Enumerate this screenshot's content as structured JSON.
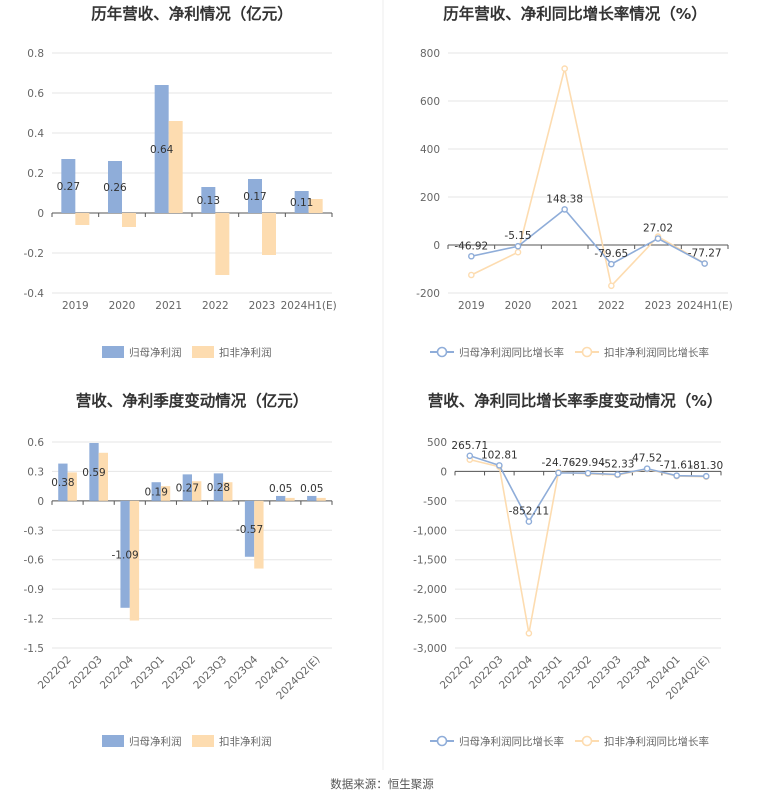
{
  "colors": {
    "blue": "#8fadd9",
    "orange": "#fddcb0",
    "blue_line": "#8fadd9",
    "orange_line": "#fddcb0"
  },
  "source_text": "数据来源：恒生聚源",
  "chart_data": [
    {
      "type": "bar",
      "title": "历年营收、净利情况（亿元）",
      "categories": [
        "2019",
        "2020",
        "2021",
        "2022",
        "2023",
        "2024H1(E)"
      ],
      "ylim": [
        -0.4,
        0.8
      ],
      "yticks": [
        "-0.4",
        "-0.2",
        "0",
        "0.2",
        "0.4",
        "0.6",
        "0.8"
      ],
      "series": [
        {
          "name": "归母净利润",
          "color": "#8fadd9",
          "values": [
            0.27,
            0.26,
            0.64,
            0.13,
            0.17,
            0.11
          ],
          "labels": [
            "0.27",
            "0.26",
            "0.64",
            "0.13",
            "0.17",
            "0.11"
          ]
        },
        {
          "name": "扣非净利润",
          "color": "#fddcb0",
          "values": [
            -0.06,
            -0.07,
            0.46,
            -0.31,
            -0.21,
            0.07
          ]
        }
      ],
      "legend_position": "bottom-center"
    },
    {
      "type": "line",
      "title": "历年营收、净利同比增长率情况（%）",
      "categories": [
        "2019",
        "2020",
        "2021",
        "2022",
        "2023",
        "2024H1(E)"
      ],
      "ylim": [
        -200,
        800
      ],
      "yticks": [
        "-200",
        "0",
        "200",
        "400",
        "600",
        "800"
      ],
      "series": [
        {
          "name": "归母净利润同比增长率",
          "color": "#8fadd9",
          "values": [
            -46.92,
            -5.15,
            148.38,
            -79.65,
            27.02,
            -77.27
          ],
          "labels": [
            "-46.92",
            "-5.15",
            "148.38",
            "-79.65",
            "27.02",
            "-77.27"
          ]
        },
        {
          "name": "扣非净利润同比增长率",
          "color": "#fddcb0",
          "values": [
            -125,
            -30,
            735,
            -170,
            35,
            -77
          ]
        }
      ],
      "legend_position": "bottom-center"
    },
    {
      "type": "bar",
      "title": "营收、净利季度变动情况（亿元）",
      "categories": [
        "2022Q2",
        "2022Q3",
        "2022Q4",
        "2023Q1",
        "2023Q2",
        "2023Q3",
        "2023Q4",
        "2024Q1",
        "2024Q2(E)"
      ],
      "ylim": [
        -1.5,
        0.6
      ],
      "yticks": [
        "-1.5",
        "-1.2",
        "-0.9",
        "-0.6",
        "-0.3",
        "0",
        "0.3",
        "0.6"
      ],
      "series": [
        {
          "name": "归母净利润",
          "color": "#8fadd9",
          "values": [
            0.38,
            0.59,
            -1.09,
            0.19,
            0.27,
            0.28,
            -0.57,
            0.05,
            0.05
          ],
          "labels": [
            "0.38",
            "0.59",
            "-1.09",
            "0.19",
            "0.27",
            "0.28",
            "-0.57",
            "0.05",
            "0.05"
          ]
        },
        {
          "name": "扣非净利润",
          "color": "#fddcb0",
          "values": [
            0.29,
            0.49,
            -1.22,
            0.15,
            0.2,
            0.19,
            -0.69,
            0.03,
            0.03
          ]
        }
      ],
      "legend_position": "bottom-center"
    },
    {
      "type": "line",
      "title": "营收、净利同比增长率季度变动情况（%）",
      "categories": [
        "2022Q2",
        "2022Q3",
        "2022Q4",
        "2023Q1",
        "2023Q2",
        "2023Q3",
        "2023Q4",
        "2024Q1",
        "2024Q2(E)"
      ],
      "ylim": [
        -3000,
        500
      ],
      "yticks": [
        "-3,000",
        "-2,500",
        "-2,000",
        "-1,500",
        "-1,000",
        "-500",
        "0",
        "500"
      ],
      "series": [
        {
          "name": "归母净利润同比增长率",
          "color": "#8fadd9",
          "values": [
            265.71,
            102.81,
            -852.11,
            -24.76,
            -29.94,
            -52.33,
            47.52,
            -71.61,
            -81.3
          ],
          "labels": [
            "265.71",
            "102.81",
            "-852.11",
            "-24.76",
            "-29.94",
            "-52.33",
            "47.52",
            "-71.61",
            "-81.30"
          ]
        },
        {
          "name": "扣非净利润同比增长率",
          "color": "#fddcb0",
          "values": [
            200,
            80,
            -2750,
            -15,
            -40,
            -60,
            40,
            -80,
            -90
          ]
        }
      ],
      "legend_position": "bottom-center"
    }
  ]
}
